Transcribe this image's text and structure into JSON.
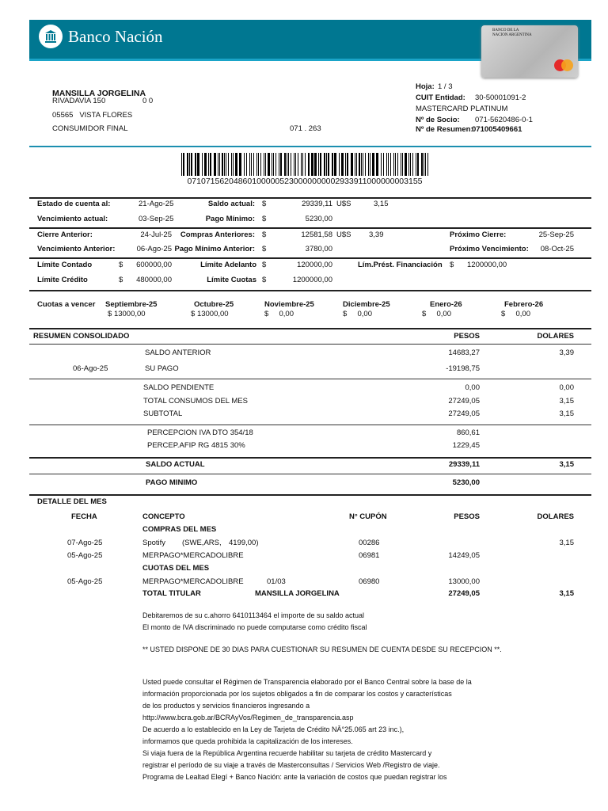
{
  "header": {
    "bank_name": "Banco Nación",
    "card_bank_text": "BANCO DE LA NACION ARGENTINA",
    "card_brand": "MasterCard",
    "brand_color": "#007791"
  },
  "client": {
    "name": "MANSILLA JORGELINA",
    "address": "RIVADAVIA 150",
    "address_extra": "0 0",
    "city": "05565   VISTA FLORES",
    "tax_status": "CONSUMIDOR FINAL",
    "branch": "071 . 263"
  },
  "account": {
    "hoja_label": "Hoja:",
    "hoja": "1 / 3",
    "cuit_label": "CUIT Entidad:",
    "cuit": "30-50001091-2",
    "product": "MASTERCARD PLATINUM",
    "socio_label": "Nº de Socio:",
    "socio": "071-5620486-0-1",
    "resumen_label": "Nº de Resumen:",
    "resumen": "071005409661"
  },
  "barcode_number": "071071562048601000005230000000002933911000000003155",
  "summary": {
    "estado_label": "Estado de cuenta al:",
    "estado": "21-Ago-25",
    "saldo_label": "Saldo actual:",
    "saldo_pesos": "29339,11",
    "saldo_usd": "3,15",
    "venc_label": "Vencimiento actual:",
    "venc": "03-Sep-25",
    "pago_min_label": "Pago Mínimo:",
    "pago_min": "5230,00",
    "cierre_ant_label": "Cierre Anterior:",
    "cierre_ant": "24-Jul-25",
    "compras_ant_label": "Compras Anteriores:",
    "compras_ant": "12581,58",
    "compras_ant_usd": "3,39",
    "prox_cierre_label": "Próximo Cierre:",
    "prox_cierre": "25-Sep-25",
    "venc_ant_label": "Vencimiento Anterior:",
    "venc_ant": "06-Ago-25",
    "pago_min_ant_label": "Pago Mínimo Anterior:",
    "pago_min_ant": "3780,00",
    "prox_venc_label": "Próximo Vencimiento:",
    "prox_venc": "08-Oct-25",
    "lim_contado_label": "Límite Contado",
    "lim_contado": "600000,00",
    "lim_adelanto_label": "Límite Adelanto",
    "lim_adelanto": "120000,00",
    "lim_prest_label": "Lím.Prést. Financiación",
    "lim_prest": "1200000,00",
    "lim_credito_label": "Límite Crédito",
    "lim_credito": "480000,00",
    "lim_cuotas_label": "Límite Cuotas",
    "lim_cuotas": "1200000,00",
    "currency": "$",
    "usd": "U$S"
  },
  "cuotas": {
    "label": "Cuotas a vencer",
    "months": [
      {
        "month": "Septiembre-25",
        "amount": "13000,00"
      },
      {
        "month": "Octubre-25",
        "amount": "13000,00"
      },
      {
        "month": "Noviembre-25",
        "amount": "0,00"
      },
      {
        "month": "Diciembre-25",
        "amount": "0,00"
      },
      {
        "month": "Enero-26",
        "amount": "0,00"
      },
      {
        "month": "Febrero-26",
        "amount": "0,00"
      }
    ]
  },
  "consolidado": {
    "title": "RESUMEN CONSOLIDADO",
    "col_pesos": "PESOS",
    "col_dolares": "DOLARES",
    "rows": [
      {
        "date": "",
        "concept": "SALDO ANTERIOR",
        "pesos": "14683,27",
        "dolares": "3,39"
      },
      {
        "date": "06-Ago-25",
        "concept": "SU PAGO",
        "pesos": "-19198,75",
        "dolares": ""
      },
      {
        "date": "",
        "concept": "SALDO PENDIENTE",
        "pesos": "0,00",
        "dolares": "0,00"
      },
      {
        "date": "",
        "concept": "TOTAL CONSUMOS DEL MES",
        "pesos": "27249,05",
        "dolares": "3,15"
      },
      {
        "date": "",
        "concept": "SUBTOTAL",
        "pesos": "27249,05",
        "dolares": "3,15"
      },
      {
        "date": "",
        "concept": "PERCEPCION IVA DTO 354/18",
        "pesos": "860,61",
        "dolares": ""
      },
      {
        "date": "",
        "concept": "PERCEP.AFIP RG 4815 30%",
        "pesos": "1229,45",
        "dolares": ""
      },
      {
        "date": "",
        "concept": "SALDO ACTUAL",
        "pesos": "29339,11",
        "dolares": "3,15"
      },
      {
        "date": "",
        "concept": "PAGO MINIMO",
        "pesos": "5230,00",
        "dolares": ""
      }
    ]
  },
  "detalle": {
    "title": "DETALLE DEL MES",
    "col_fecha": "FECHA",
    "col_concepto": "CONCEPTO",
    "col_cupon": "N° CUPÓN",
    "col_pesos": "PESOS",
    "col_dolares": "DOLARES",
    "compras_title": "COMPRAS DEL MES",
    "cuotas_title": "CUOTAS DEL MES",
    "compras": [
      {
        "date": "07-Ago-25",
        "concept": "Spotify",
        "detail1": "(SWE,ARS,",
        "detail2": "4199,00)",
        "cupon": "00286",
        "pesos": "",
        "dolares": "3,15"
      },
      {
        "date": "05-Ago-25",
        "concept": "MERPAGO*MERCADOLIBRE",
        "cupon": "06981",
        "pesos": "14249,05",
        "dolares": ""
      }
    ],
    "cuotas": [
      {
        "date": "05-Ago-25",
        "concept": "MERPAGO*MERCADOLIBRE",
        "installment": "01/03",
        "cupon": "06980",
        "pesos": "13000,00",
        "dolares": ""
      }
    ],
    "total_label": "TOTAL TITULAR",
    "total_name": "MANSILLA JORGELINA",
    "total_pesos": "27249,05",
    "total_dolares": "3,15"
  },
  "notes": {
    "debit": "Debitaremos de su c.ahorro  6410113464 el importe de su saldo actual",
    "iva": "El monto de IVA discriminado no puede computarse como crédito fiscal",
    "dispute": "** USTED DISPONE DE 30 DIAS PARA CUESTIONAR SU RESUMEN DE CUENTA DESDE SU RECEPCION **.",
    "paragraph": [
      "Usted puede consultar el Régimen de Transparencia elaborado por el Banco Central sobre la base de la",
      "información proporcionada por los sujetos obligados a fin de comparar los costos y características",
      "de los productos y servicios financieros ingresando a",
      "http://www.bcra.gob.ar/BCRAyVos/Regimen_de_transparencia.asp",
      "De acuerdo a lo establecido en la Ley de Tarjeta de Crédito NÂ°25.065 art 23 inc.),",
      "informamos que queda prohibida la capitalización de los intereses.",
      "Si viaja fuera de la República Argentina recuerde habilitar su tarjeta de crédito Mastercard y",
      "registrar el período de su viaje a través de Masterconsultas / Servicios Web /Registro de viaje.",
      "Programa de Lealtad Elegí + Banco Nación: ante la variación de costos que puedan registrar los"
    ]
  }
}
